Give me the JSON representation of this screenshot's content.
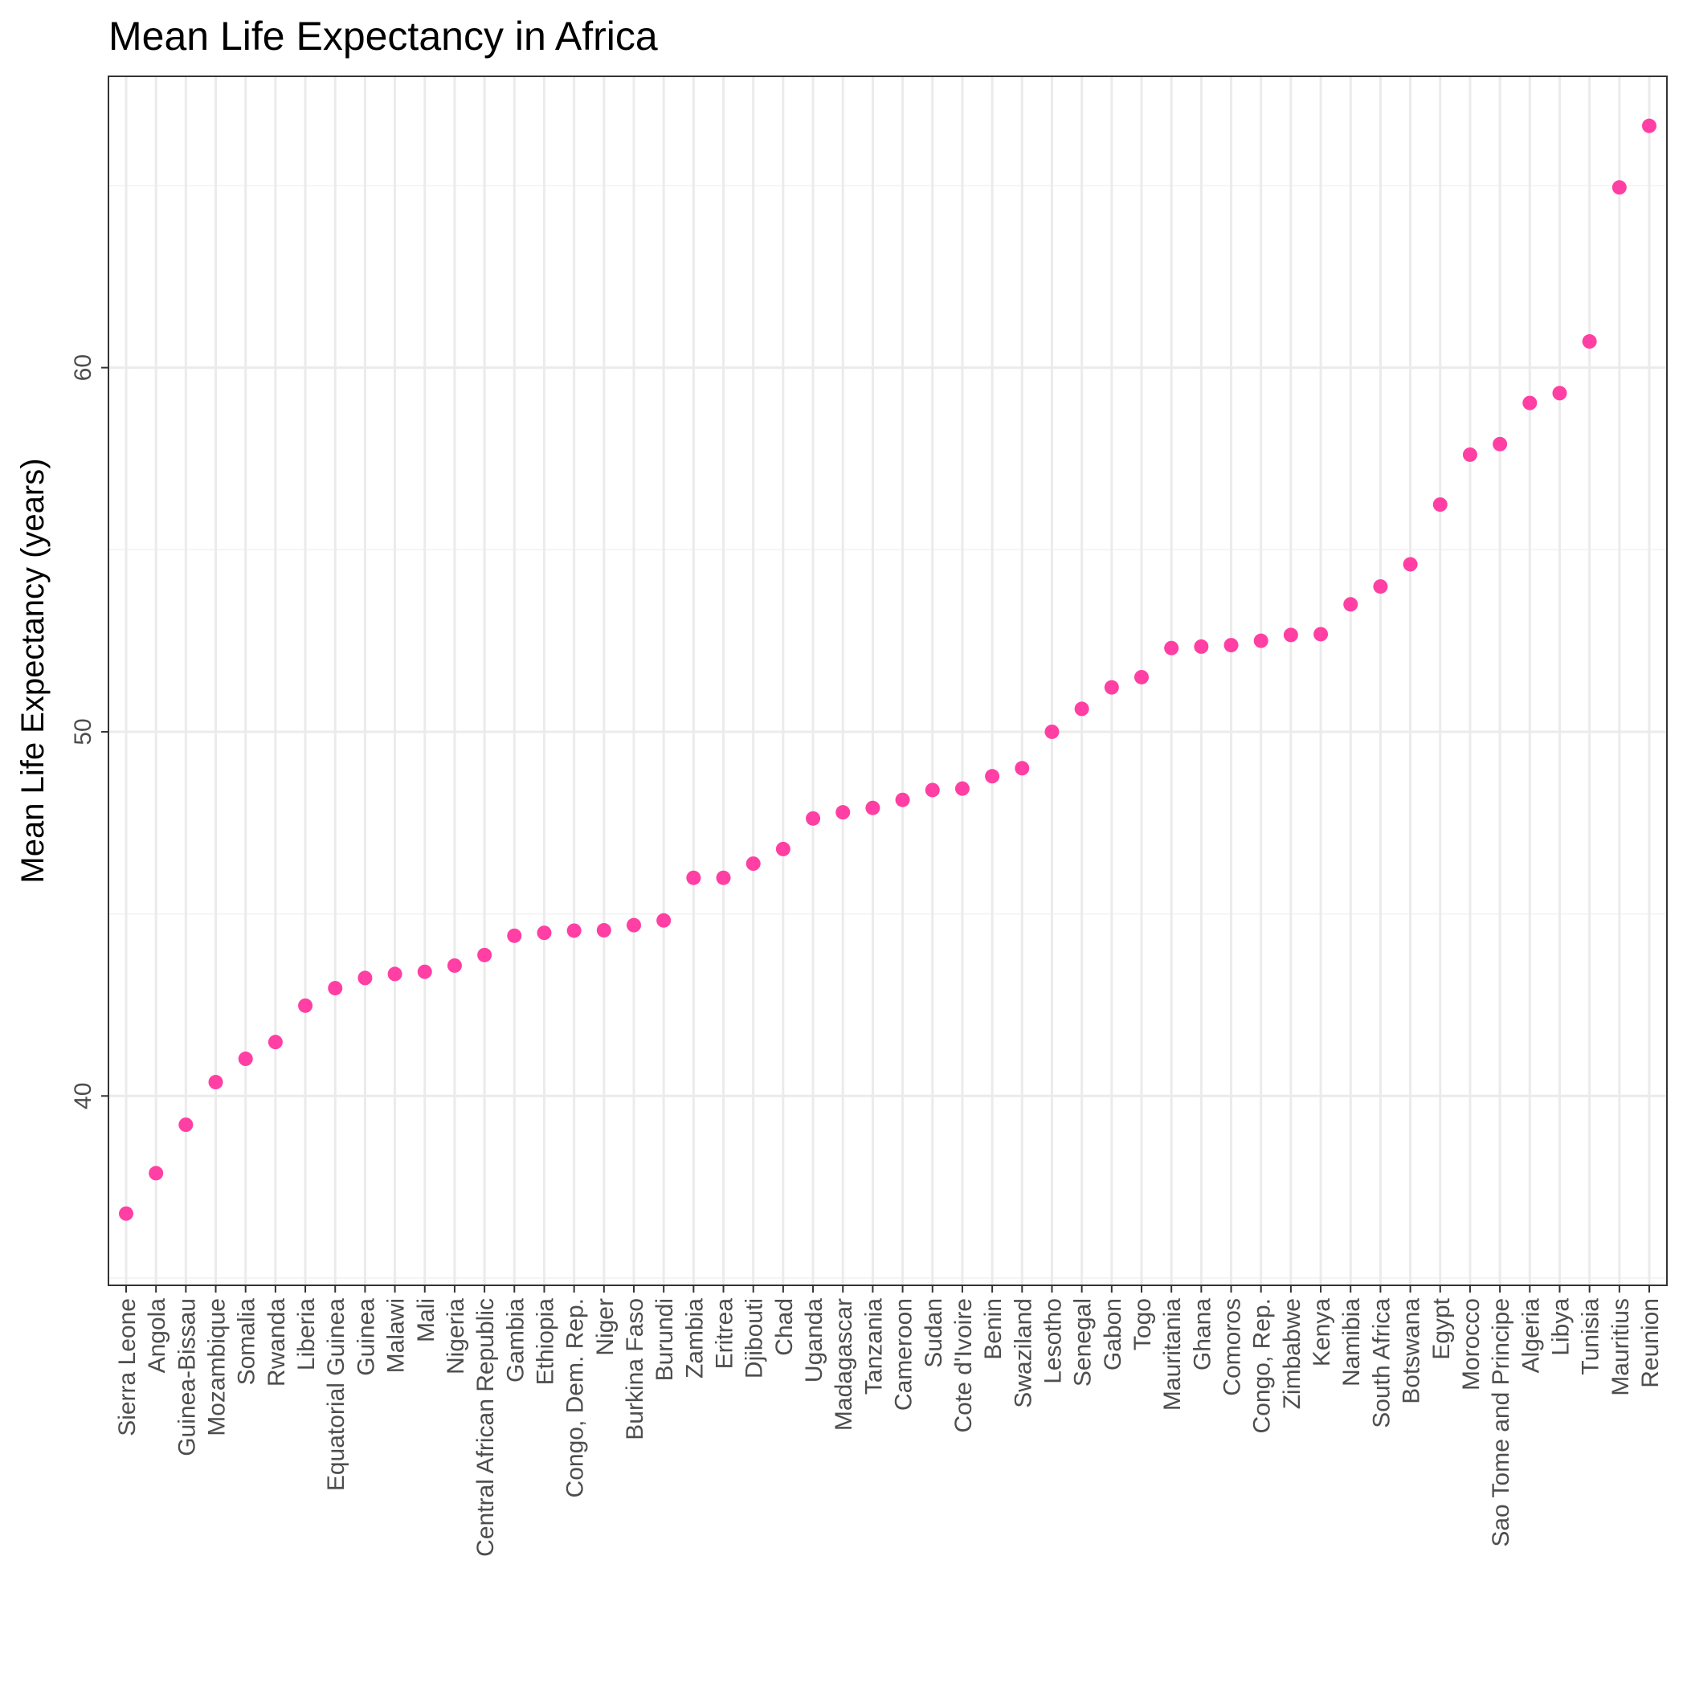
{
  "chart_data": {
    "type": "scatter",
    "title": "Mean Life Expectancy in Africa",
    "xlabel": "",
    "ylabel": "Mean Life Expectancy (years)",
    "ylim": [
      34.8,
      68.0
    ],
    "yticks": [
      40,
      50,
      60
    ],
    "grid": true,
    "point_color": "#ff3fa4",
    "categories": [
      "Sierra Leone",
      "Angola",
      "Guinea-Bissau",
      "Mozambique",
      "Somalia",
      "Rwanda",
      "Liberia",
      "Equatorial Guinea",
      "Guinea",
      "Malawi",
      "Mali",
      "Nigeria",
      "Central African Republic",
      "Gambia",
      "Ethiopia",
      "Congo, Dem. Rep.",
      "Niger",
      "Burkina Faso",
      "Burundi",
      "Zambia",
      "Eritrea",
      "Djibouti",
      "Chad",
      "Uganda",
      "Madagascar",
      "Tanzania",
      "Cameroon",
      "Sudan",
      "Cote d'Ivoire",
      "Benin",
      "Swaziland",
      "Lesotho",
      "Senegal",
      "Gabon",
      "Togo",
      "Mauritania",
      "Ghana",
      "Comoros",
      "Congo, Rep.",
      "Zimbabwe",
      "Kenya",
      "Namibia",
      "South Africa",
      "Botswana",
      "Egypt",
      "Morocco",
      "Sao Tome and Principe",
      "Algeria",
      "Libya",
      "Tunisia",
      "Mauritius",
      "Reunion"
    ],
    "values": [
      36.77,
      37.88,
      39.21,
      40.38,
      41.02,
      41.48,
      42.48,
      42.96,
      43.24,
      43.35,
      43.41,
      43.58,
      43.87,
      44.4,
      44.48,
      44.54,
      44.55,
      44.69,
      44.82,
      45.99,
      45.99,
      46.38,
      46.78,
      47.62,
      47.79,
      47.91,
      48.13,
      48.4,
      48.44,
      48.78,
      49.0,
      50.0,
      50.63,
      51.22,
      51.5,
      52.3,
      52.34,
      52.38,
      52.5,
      52.66,
      52.68,
      53.5,
      53.99,
      54.6,
      56.24,
      57.61,
      57.9,
      59.03,
      59.3,
      60.72,
      64.95,
      66.64
    ]
  }
}
